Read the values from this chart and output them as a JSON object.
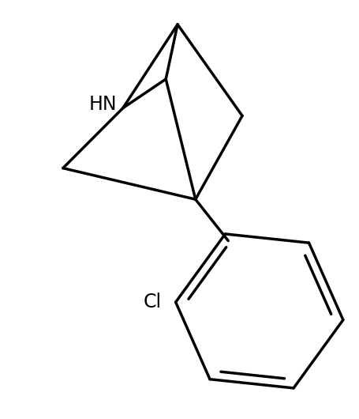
{
  "background_color": "#ffffff",
  "line_color": "#000000",
  "line_width": 2.5,
  "font_size_label": 17,
  "HN_label": "HN",
  "Cl_label": "Cl",
  "figsize": [
    4.56,
    5.3
  ],
  "dpi": 100
}
